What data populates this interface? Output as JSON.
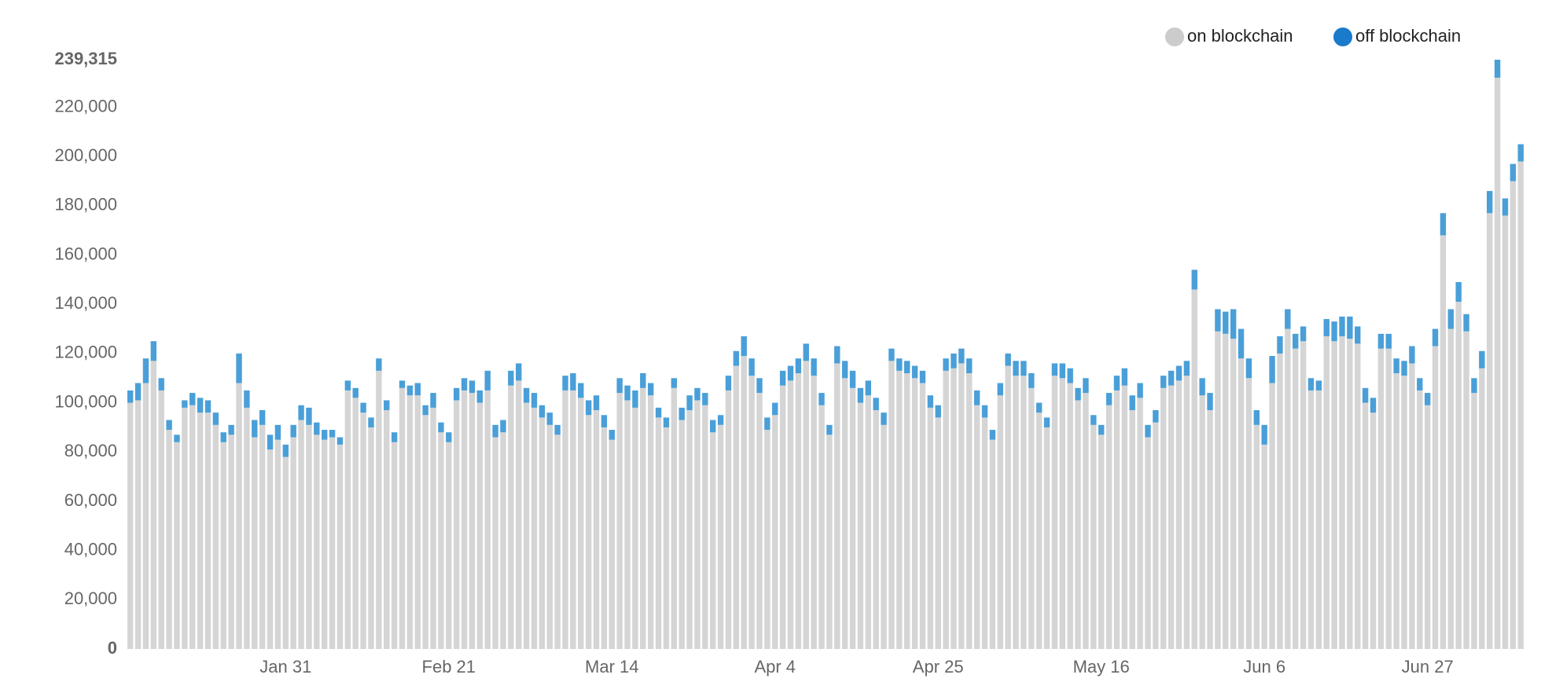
{
  "chart_data": {
    "type": "stacked_bar",
    "categories": [
      null,
      null,
      null,
      null,
      null,
      null,
      null,
      null,
      null,
      null,
      null,
      null,
      null,
      null,
      null,
      null,
      null,
      null,
      null,
      null,
      "Jan 31",
      null,
      null,
      null,
      null,
      null,
      null,
      null,
      null,
      null,
      null,
      null,
      null,
      null,
      null,
      null,
      null,
      null,
      null,
      null,
      null,
      "Feb 21",
      null,
      null,
      null,
      null,
      null,
      null,
      null,
      null,
      null,
      null,
      null,
      null,
      null,
      null,
      null,
      null,
      null,
      null,
      null,
      null,
      "Mar 14",
      null,
      null,
      null,
      null,
      null,
      null,
      null,
      null,
      null,
      null,
      null,
      null,
      null,
      null,
      null,
      null,
      null,
      null,
      null,
      null,
      "Apr 4",
      null,
      null,
      null,
      null,
      null,
      null,
      null,
      null,
      null,
      null,
      null,
      null,
      null,
      null,
      null,
      null,
      null,
      null,
      null,
      null,
      "Apr 25",
      null,
      null,
      null,
      null,
      null,
      null,
      null,
      null,
      null,
      null,
      null,
      null,
      null,
      null,
      null,
      null,
      null,
      null,
      null,
      null,
      "May 16",
      null,
      null,
      null,
      null,
      null,
      null,
      null,
      null,
      null,
      null,
      null,
      null,
      null,
      null,
      null,
      null,
      null,
      null,
      null,
      null,
      "Jun 6",
      null,
      null,
      null,
      null,
      null,
      null,
      null,
      null,
      null,
      null,
      null,
      null,
      null,
      null,
      null,
      null,
      null,
      null,
      null,
      null,
      "Jun 27",
      null,
      null,
      null,
      null,
      null,
      null,
      null,
      null,
      null,
      null,
      null,
      null
    ],
    "series": [
      {
        "name": "on blockchain",
        "color": "#d5d5d5",
        "values": [
          100000,
          101000,
          108000,
          117000,
          105000,
          89000,
          84000,
          98000,
          99000,
          96000,
          96000,
          91000,
          84000,
          87000,
          108000,
          98000,
          86000,
          91000,
          81000,
          85000,
          78000,
          86000,
          93000,
          91000,
          87000,
          85000,
          86000,
          83000,
          105000,
          102000,
          96000,
          90000,
          113000,
          97000,
          84000,
          106000,
          103000,
          103000,
          95000,
          98000,
          88000,
          84000,
          101000,
          105000,
          104000,
          100000,
          105000,
          86000,
          88000,
          107000,
          109000,
          100000,
          98000,
          94000,
          91000,
          87000,
          105000,
          105000,
          102000,
          95000,
          97000,
          90000,
          85000,
          104000,
          101000,
          98000,
          106000,
          103000,
          94000,
          90000,
          106000,
          93000,
          97000,
          101000,
          99000,
          88000,
          91000,
          105000,
          115000,
          119000,
          111000,
          104000,
          89000,
          95000,
          107000,
          109000,
          112000,
          117000,
          111000,
          99000,
          87000,
          116000,
          110000,
          106000,
          100000,
          103000,
          97000,
          91000,
          117000,
          113000,
          112000,
          110000,
          108000,
          98000,
          94000,
          113000,
          114000,
          116000,
          112000,
          99000,
          94000,
          85000,
          103000,
          115000,
          111000,
          111000,
          106000,
          96000,
          90000,
          111000,
          110000,
          108000,
          101000,
          104000,
          91000,
          87000,
          99000,
          105000,
          107000,
          97000,
          102000,
          86000,
          92000,
          106000,
          107000,
          109000,
          111000,
          146000,
          103000,
          97000,
          129000,
          128000,
          126000,
          118000,
          110000,
          91000,
          83000,
          108000,
          120000,
          130000,
          122000,
          125000,
          105000,
          105000,
          127000,
          125000,
          127000,
          126000,
          124000,
          100000,
          96000,
          122000,
          122000,
          112000,
          111000,
          116000,
          105000,
          99000,
          123000,
          168000,
          130000,
          141000,
          129000,
          104000,
          114000,
          177000,
          232000,
          176000,
          190000,
          198000
        ]
      },
      {
        "name": "off blockchain",
        "color": "#4a9fd8",
        "values": [
          5000,
          7000,
          10000,
          8000,
          5000,
          4000,
          3000,
          3000,
          5000,
          6000,
          5000,
          5000,
          4000,
          4000,
          12000,
          7000,
          7000,
          6000,
          6000,
          6000,
          5000,
          5000,
          6000,
          7000,
          5000,
          4000,
          3000,
          3000,
          4000,
          4000,
          4000,
          4000,
          5000,
          4000,
          4000,
          3000,
          4000,
          5000,
          4000,
          6000,
          4000,
          4000,
          5000,
          5000,
          5000,
          5000,
          8000,
          5000,
          5000,
          6000,
          7000,
          6000,
          6000,
          5000,
          5000,
          4000,
          6000,
          7000,
          6000,
          6000,
          6000,
          5000,
          4000,
          6000,
          6000,
          7000,
          6000,
          5000,
          4000,
          4000,
          4000,
          5000,
          6000,
          5000,
          5000,
          5000,
          4000,
          6000,
          6000,
          8000,
          7000,
          6000,
          5000,
          5000,
          6000,
          6000,
          6000,
          7000,
          7000,
          5000,
          4000,
          7000,
          7000,
          7000,
          6000,
          6000,
          5000,
          5000,
          5000,
          5000,
          5000,
          5000,
          5000,
          5000,
          5000,
          5000,
          6000,
          6000,
          6000,
          6000,
          5000,
          4000,
          5000,
          5000,
          6000,
          6000,
          6000,
          4000,
          4000,
          5000,
          6000,
          6000,
          5000,
          6000,
          4000,
          4000,
          5000,
          6000,
          7000,
          6000,
          6000,
          5000,
          5000,
          5000,
          6000,
          6000,
          6000,
          8000,
          7000,
          7000,
          9000,
          9000,
          12000,
          12000,
          8000,
          6000,
          8000,
          11000,
          7000,
          8000,
          6000,
          6000,
          5000,
          4000,
          7000,
          8000,
          8000,
          9000,
          7000,
          6000,
          6000,
          6000,
          6000,
          6000,
          6000,
          7000,
          5000,
          5000,
          7000,
          9000,
          8000,
          8000,
          7000,
          6000,
          7000,
          9000,
          7315,
          7000,
          7000,
          7000
        ]
      }
    ],
    "ylim": [
      0,
      239315
    ],
    "yticks": [
      0,
      {
        "value": 20000,
        "label": "20,000"
      },
      {
        "value": 40000,
        "label": "40,000"
      },
      {
        "value": 60000,
        "label": "60,000"
      },
      {
        "value": 80000,
        "label": "80,000"
      },
      {
        "value": 100000,
        "label": "100,000"
      },
      {
        "value": 120000,
        "label": "120,000"
      },
      {
        "value": 140000,
        "label": "140,000"
      },
      {
        "value": 160000,
        "label": "160,000"
      },
      {
        "value": 180000,
        "label": "180,000"
      },
      {
        "value": 200000,
        "label": "200,000"
      },
      {
        "value": 220000,
        "label": "220,000"
      },
      {
        "value": 239315,
        "label": "239,315"
      }
    ],
    "grid": false,
    "legend": "top-right"
  }
}
